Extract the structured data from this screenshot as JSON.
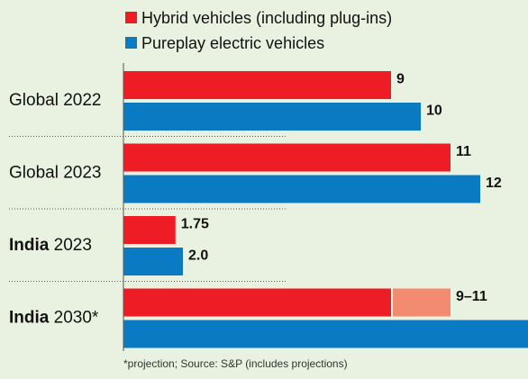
{
  "chart_data": {
    "type": "bar",
    "orientation": "horizontal",
    "categories": [
      "Global 2022",
      "Global 2023",
      "India 2023",
      "India 2030*"
    ],
    "series": [
      {
        "name": "Hybrid vehicles (including plug-ins)",
        "color": "#ee1c25",
        "range_color": "#f38b70",
        "values": [
          9,
          11,
          1.75,
          9
        ],
        "high": [
          null,
          null,
          null,
          11
        ],
        "value_labels": [
          "9",
          "11",
          "1.75",
          "9–11"
        ]
      },
      {
        "name": "Pureplay electric vehicles",
        "color": "#0a7bc2",
        "values": [
          10,
          12,
          2,
          14
        ],
        "value_labels": [
          "10",
          "12",
          "2.0",
          null
        ]
      }
    ],
    "footnote": "*projection;  Source: S&P (includes projections)"
  }
}
